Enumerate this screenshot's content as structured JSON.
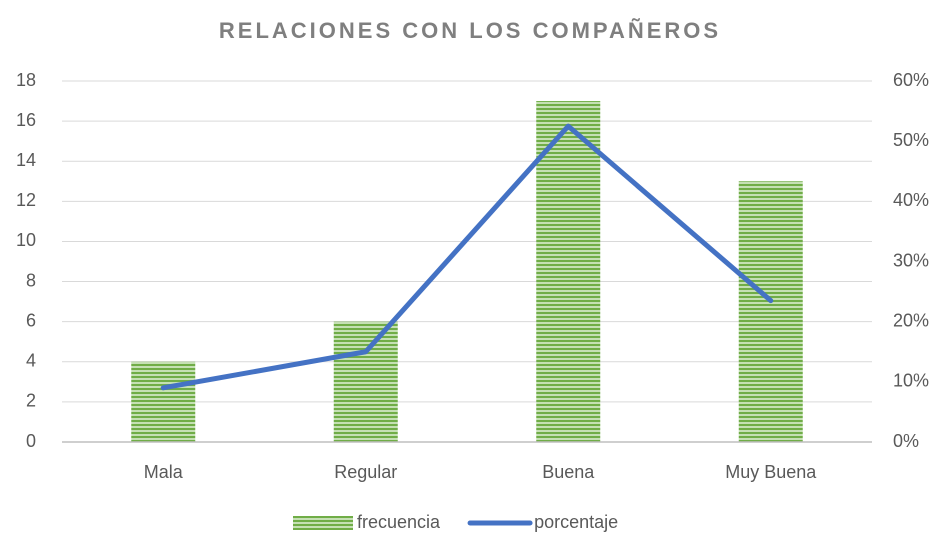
{
  "chart_data": {
    "type": "bar",
    "title": "RELACIONES CON LOS COMPAÑEROS",
    "categories": [
      "Mala",
      "Regular",
      "Buena",
      "Muy Buena"
    ],
    "series": [
      {
        "name": "frecuencia",
        "type": "bar",
        "color": "#70ad47",
        "values": [
          4,
          6,
          17,
          13
        ]
      },
      {
        "name": "porcentaje",
        "type": "line",
        "color": "#4472c4",
        "axis": "y2",
        "values": [
          9,
          15,
          52.5,
          23.5
        ]
      }
    ],
    "ylim": [
      0,
      18
    ],
    "yticks": [
      0,
      2,
      4,
      6,
      8,
      10,
      12,
      14,
      16,
      18
    ],
    "y2lim": [
      0,
      60
    ],
    "y2ticks": [
      {
        "value": 0,
        "label": "0%"
      },
      {
        "value": 10,
        "label": "10%"
      },
      {
        "value": 20,
        "label": "20%"
      },
      {
        "value": 30,
        "label": "30%"
      },
      {
        "value": 40,
        "label": "40%"
      },
      {
        "value": 50,
        "label": "50%"
      },
      {
        "value": 60,
        "label": "60%"
      }
    ],
    "grid": true,
    "legend": "bottom"
  }
}
